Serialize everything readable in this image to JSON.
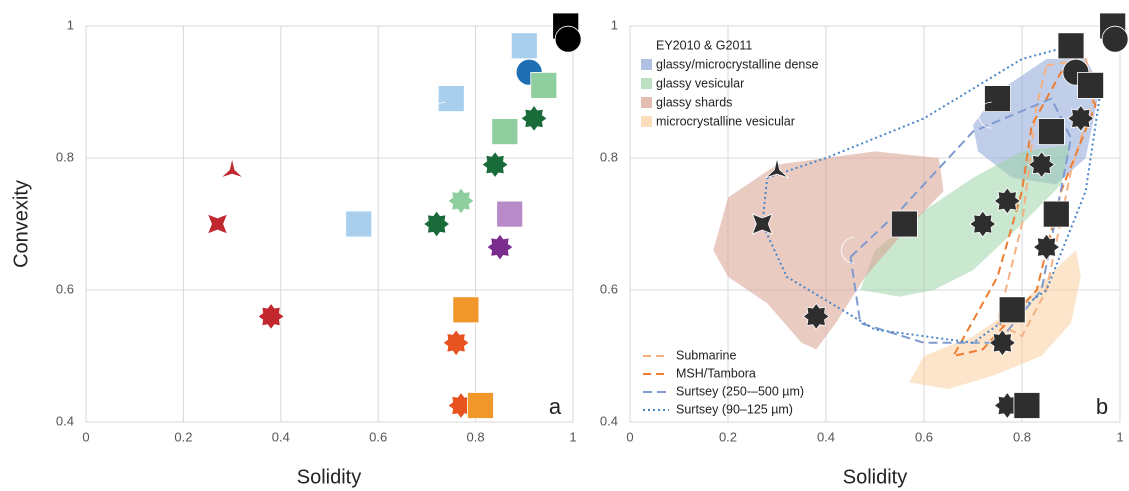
{
  "chart_data": [
    {
      "type": "scatter",
      "label": "a",
      "xlabel": "Solidity",
      "ylabel": "Convexity",
      "xlim": [
        0,
        1
      ],
      "ylim": [
        0.4,
        1
      ],
      "xticks": [
        0,
        0.2,
        0.4,
        0.6,
        0.8,
        1
      ],
      "yticks": [
        0.4,
        0.6,
        0.8,
        1
      ],
      "grid": true,
      "x": [
        0.3,
        0.27,
        0.38,
        0.45,
        0.56,
        0.75,
        0.73,
        0.9,
        0.91,
        0.985,
        0.99,
        0.77,
        0.72,
        0.84,
        0.86,
        0.92,
        0.94,
        0.87,
        0.85,
        0.78,
        0.76,
        0.77,
        0.81
      ],
      "y": [
        0.78,
        0.7,
        0.56,
        0.66,
        0.7,
        0.89,
        0.865,
        0.97,
        0.93,
        1.0,
        0.98,
        0.735,
        0.7,
        0.79,
        0.84,
        0.86,
        0.91,
        0.715,
        0.665,
        0.57,
        0.52,
        0.425,
        0.425
      ],
      "markers": [
        "tripod",
        "star",
        "gear",
        "crescent",
        "square",
        "square",
        "crescent",
        "square",
        "circle",
        "square",
        "circle",
        "gear",
        "gear",
        "gear",
        "square",
        "gear",
        "square",
        "square",
        "gear",
        "square",
        "gear",
        "gear",
        "square"
      ],
      "colors": [
        "#c0282d",
        "#c0282d",
        "#c0282d",
        "#1f6fb5",
        "#a9cfee",
        "#a9cfee",
        "#1f6fb5",
        "#a9cfee",
        "#1f6fb5",
        "#000000",
        "#000000",
        "#8fcf9f",
        "#1a6b3a",
        "#1a6b3a",
        "#8fcf9f",
        "#1a6b3a",
        "#8fcf9f",
        "#b98ac8",
        "#7b2d8e",
        "#f0962a",
        "#e8541f",
        "#e8541f",
        "#f0962a"
      ]
    },
    {
      "type": "scatter",
      "label": "b",
      "xlabel": "Solidity",
      "xlim": [
        0,
        1
      ],
      "ylim": [
        0.4,
        1
      ],
      "xticks": [
        0,
        0.2,
        0.4,
        0.6,
        0.8,
        1
      ],
      "yticks": [
        0.4,
        0.6,
        0.8,
        1
      ],
      "grid": true,
      "x": [
        0.3,
        0.27,
        0.38,
        0.45,
        0.56,
        0.75,
        0.73,
        0.9,
        0.91,
        0.985,
        0.99,
        0.77,
        0.72,
        0.84,
        0.86,
        0.92,
        0.94,
        0.87,
        0.85,
        0.78,
        0.76,
        0.77,
        0.81
      ],
      "y": [
        0.78,
        0.7,
        0.56,
        0.66,
        0.7,
        0.89,
        0.865,
        0.97,
        0.93,
        1.0,
        0.98,
        0.735,
        0.7,
        0.79,
        0.84,
        0.86,
        0.91,
        0.715,
        0.665,
        0.57,
        0.52,
        0.425,
        0.425
      ],
      "markers": [
        "tripod",
        "star",
        "gear",
        "crescent",
        "square",
        "square",
        "crescent",
        "square",
        "circle",
        "square",
        "circle",
        "gear",
        "gear",
        "gear",
        "square",
        "gear",
        "square",
        "square",
        "gear",
        "square",
        "gear",
        "gear",
        "square"
      ],
      "color": "#2e2e2e",
      "legend_title": "EY2010 & G2011",
      "regions": [
        {
          "name": "glassy/microcrystalline dense",
          "color": "#8ea6d8",
          "x": [
            0.7,
            0.75,
            0.85,
            0.93,
            0.96,
            0.93,
            0.87,
            0.78,
            0.71
          ],
          "y": [
            0.85,
            0.9,
            0.95,
            0.95,
            0.91,
            0.8,
            0.76,
            0.77,
            0.81
          ]
        },
        {
          "name": "glassy vesicular",
          "color": "#9fd3a8",
          "x": [
            0.47,
            0.5,
            0.6,
            0.7,
            0.8,
            0.9,
            0.88,
            0.8,
            0.7,
            0.62,
            0.55
          ],
          "y": [
            0.6,
            0.66,
            0.72,
            0.77,
            0.81,
            0.82,
            0.76,
            0.7,
            0.63,
            0.6,
            0.59
          ]
        },
        {
          "name": "glassy shards",
          "color": "#d9a190",
          "x": [
            0.17,
            0.2,
            0.3,
            0.5,
            0.63,
            0.64,
            0.55,
            0.48,
            0.42,
            0.38,
            0.35,
            0.28,
            0.2
          ],
          "y": [
            0.66,
            0.74,
            0.79,
            0.81,
            0.8,
            0.75,
            0.68,
            0.62,
            0.55,
            0.51,
            0.52,
            0.58,
            0.62
          ]
        },
        {
          "name": "microcrystalline vesicular",
          "color": "#f9cfa0",
          "x": [
            0.57,
            0.6,
            0.7,
            0.8,
            0.88,
            0.91,
            0.92,
            0.9,
            0.84,
            0.74,
            0.65
          ],
          "y": [
            0.46,
            0.5,
            0.53,
            0.58,
            0.64,
            0.66,
            0.62,
            0.55,
            0.5,
            0.47,
            0.45
          ]
        }
      ],
      "outlines": [
        {
          "name": "Submarine",
          "color": "#f4b183",
          "dash": "8 5",
          "x": [
            0.85,
            0.93,
            0.95,
            0.9,
            0.85,
            0.8,
            0.75,
            0.8,
            0.83,
            0.85
          ],
          "y": [
            0.94,
            0.95,
            0.9,
            0.78,
            0.6,
            0.53,
            0.55,
            0.7,
            0.88,
            0.94
          ]
        },
        {
          "name": "MSH/Tambora",
          "color": "#ed7d31",
          "dash": "8 5",
          "x": [
            0.91,
            0.95,
            0.88,
            0.83,
            0.72,
            0.66,
            0.75,
            0.8,
            0.82,
            0.88,
            0.91
          ],
          "y": [
            0.94,
            0.88,
            0.75,
            0.6,
            0.51,
            0.5,
            0.62,
            0.75,
            0.85,
            0.93,
            0.94
          ]
        },
        {
          "name": "Surtsey (250-–500 µm)",
          "color": "#7f9bd0",
          "dash": "9 5",
          "x": [
            0.45,
            0.55,
            0.7,
            0.86,
            0.9,
            0.84,
            0.75,
            0.6,
            0.47,
            0.45
          ],
          "y": [
            0.65,
            0.72,
            0.84,
            0.89,
            0.83,
            0.6,
            0.52,
            0.52,
            0.55,
            0.65
          ]
        },
        {
          "name": "Surtsey (90–125 µm)",
          "color": "#4a86c8",
          "dash": "2 3",
          "x": [
            0.28,
            0.4,
            0.6,
            0.8,
            0.9,
            0.96,
            0.93,
            0.85,
            0.7,
            0.5,
            0.32,
            0.27,
            0.28
          ],
          "y": [
            0.77,
            0.8,
            0.86,
            0.95,
            0.97,
            0.9,
            0.75,
            0.6,
            0.52,
            0.54,
            0.62,
            0.7,
            0.77
          ]
        }
      ]
    }
  ]
}
